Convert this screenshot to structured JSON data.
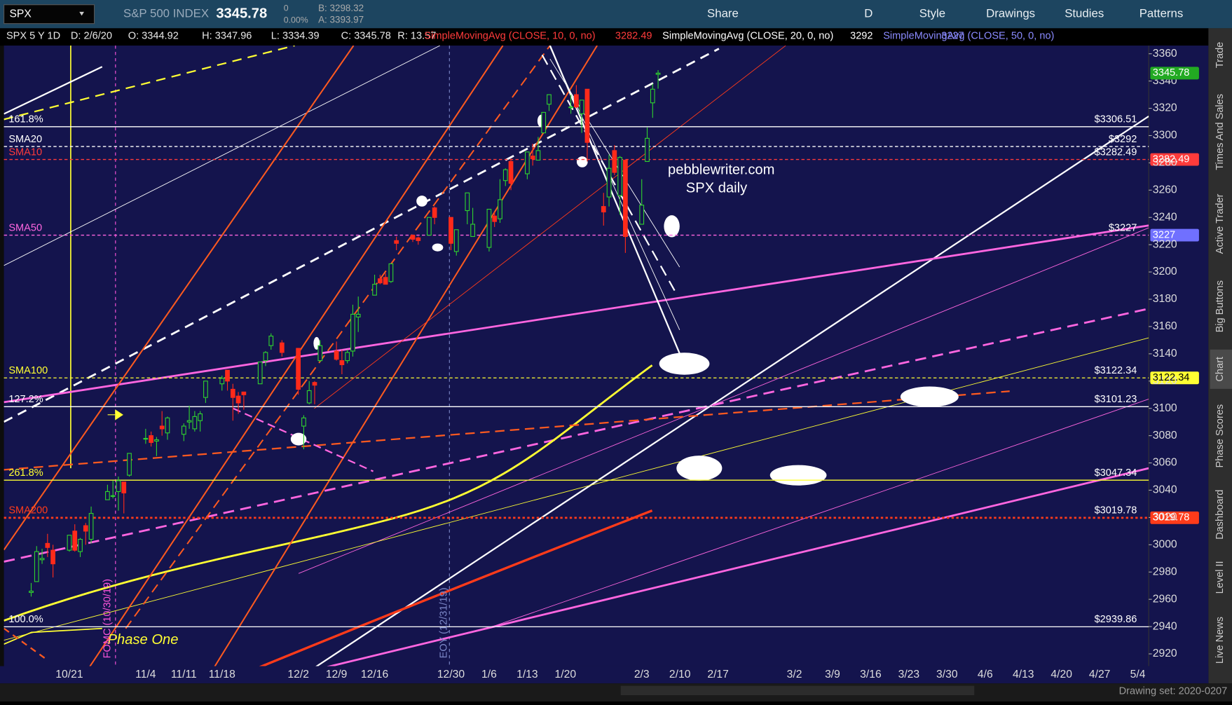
{
  "app": {
    "symbol": "SPX",
    "description": "S&P 500 INDEX",
    "last": "3345.78",
    "change": "0",
    "change_pct": "0.00%",
    "bid": "B: 3298.32",
    "ask": "A: 3393.97",
    "toolbar": [
      "Share",
      "D",
      "Style",
      "Drawings",
      "Studies",
      "Patterns"
    ],
    "info": [
      "SPX 5 Y 1D",
      "D: 2/6/20",
      "O: 3344.92",
      "H: 3347.96",
      "L: 3334.39",
      "C: 3345.78",
      "R: 13.57"
    ],
    "studies": [
      {
        "name": "SimpleMovingAvg (CLOSE, 10, 0, no)",
        "value": "3282.49",
        "color": "#ff3b3b"
      },
      {
        "name": "SimpleMovingAvg (CLOSE, 20, 0, no)",
        "value": "3292",
        "color": "#ffffff"
      },
      {
        "name": "SimpleMovingAvg (CLOSE, 50, 0, no)",
        "value": "3227",
        "color": "#8a8aff"
      }
    ],
    "side_tabs": [
      "Trade",
      "Times And Sales",
      "Active Trader",
      "Big Buttons",
      "Chart",
      "Phase Scores",
      "Dashboard",
      "Level II",
      "Live News"
    ],
    "drawing_set": "Drawing set: 2020-0207"
  },
  "chart_data": {
    "type": "candlestick",
    "up_color": "#2fd12f",
    "down_color": "#ff2a1a",
    "x": [
      "10/14",
      "10/15",
      "10/16",
      "10/17",
      "10/18",
      "10/21",
      "10/22",
      "10/23",
      "10/24",
      "10/25",
      "10/28",
      "10/29",
      "10/30",
      "10/31",
      "11/1",
      "11/4",
      "11/5",
      "11/6",
      "11/7",
      "11/8",
      "11/11",
      "11/12",
      "11/13",
      "11/14",
      "11/15",
      "11/18",
      "11/19",
      "11/20",
      "11/21",
      "11/22",
      "11/25",
      "11/26",
      "11/27",
      "11/29",
      "12/2",
      "12/3",
      "12/4",
      "12/5",
      "12/6",
      "12/9",
      "12/10",
      "12/11",
      "12/12",
      "12/13",
      "12/16",
      "12/17",
      "12/18",
      "12/19",
      "12/20",
      "12/23",
      "12/24",
      "12/26",
      "12/27",
      "12/30",
      "12/31",
      "1/2",
      "1/3",
      "1/6",
      "1/7",
      "1/8",
      "1/9",
      "1/10",
      "1/13",
      "1/14",
      "1/15",
      "1/16",
      "1/17",
      "1/21",
      "1/22",
      "1/23",
      "1/24",
      "1/27",
      "1/28",
      "1/29",
      "1/30",
      "1/31",
      "2/3",
      "2/4",
      "2/5",
      "2/6"
    ],
    "open": [
      2965,
      2973,
      2989,
      3001,
      2996,
      2996,
      3010,
      2995,
      3014,
      3004,
      3033,
      3036,
      3039,
      3046,
      3051,
      3078,
      3080,
      3076,
      3087,
      3082,
      3081,
      3090,
      3085,
      3091,
      3108,
      3118,
      3128,
      3114,
      3109,
      3112,
      3118,
      3135,
      3146,
      3148,
      3144,
      3087,
      3104,
      3119,
      3135,
      3142,
      3135,
      3135,
      3142,
      3167,
      3183,
      3195,
      3196,
      3193,
      3223,
      3227,
      3225,
      3227,
      3247,
      3240,
      3215,
      3245,
      3226,
      3218,
      3241,
      3239,
      3267,
      3281,
      3272,
      3285,
      3282,
      3302,
      3323,
      3321,
      3330,
      3316,
      3334,
      3248,
      3255,
      3289,
      3256,
      3282,
      3235,
      3281,
      3324,
      3344.92
    ],
    "high": [
      2972,
      2999,
      2997,
      3008,
      3000,
      3007,
      3015,
      3005,
      3016,
      3028,
      3044,
      3047,
      3050,
      3046,
      3067,
      3085,
      3083,
      3079,
      3098,
      3094,
      3089,
      3102,
      3098,
      3098,
      3120,
      3124,
      3128,
      3118,
      3112,
      3112,
      3134,
      3142,
      3155,
      3150,
      3144,
      3095,
      3120,
      3120,
      3150,
      3149,
      3143,
      3143,
      3176,
      3182,
      3198,
      3198,
      3199,
      3206,
      3226,
      3227,
      3226,
      3240,
      3248,
      3240,
      3231,
      3258,
      3247,
      3246,
      3244,
      3268,
      3276,
      3283,
      3288,
      3294,
      3299,
      3317,
      3330,
      3330,
      3337,
      3326,
      3334,
      3258,
      3286,
      3293,
      3285,
      3282,
      3268,
      3306,
      3338,
      3347.96
    ],
    "low": [
      2962,
      2973,
      2986,
      2991,
      2976,
      2995,
      2995,
      2991,
      3000,
      3001,
      3033,
      3034,
      3025,
      3023,
      3050,
      3074,
      3072,
      3065,
      3080,
      3077,
      3076,
      3085,
      3083,
      3083,
      3104,
      3113,
      3113,
      3091,
      3096,
      3099,
      3118,
      3131,
      3143,
      3138,
      3110,
      3070,
      3103,
      3103,
      3134,
      3135,
      3125,
      3133,
      3138,
      3156,
      3183,
      3191,
      3191,
      3192,
      3216,
      3222,
      3220,
      3227,
      3235,
      3216,
      3212,
      3235,
      3226,
      3215,
      3233,
      3236,
      3263,
      3260,
      3268,
      3278,
      3282,
      3302,
      3318,
      3316,
      3320,
      3302,
      3281,
      3234,
      3248,
      3271,
      3242,
      3214,
      3235,
      3281,
      3313,
      3334.39
    ],
    "close": [
      2966,
      2995,
      2990,
      2998,
      2986,
      3007,
      2996,
      3004,
      3010,
      3023,
      3039,
      3036,
      3047,
      3038,
      3067,
      3078,
      3075,
      3077,
      3085,
      3093,
      3087,
      3091,
      3094,
      3096,
      3120,
      3122,
      3120,
      3108,
      3104,
      3110,
      3134,
      3141,
      3153,
      3141,
      3114,
      3093,
      3113,
      3117,
      3146,
      3136,
      3132,
      3141,
      3169,
      3169,
      3191,
      3192,
      3191,
      3206,
      3221,
      3224,
      3223,
      3240,
      3240,
      3221,
      3231,
      3258,
      3235,
      3246,
      3237,
      3253,
      3275,
      3265,
      3288,
      3283,
      3289,
      3317,
      3330,
      3321,
      3321,
      3326,
      3295,
      3244,
      3276,
      3273,
      3284,
      3226,
      3249,
      3298,
      3334,
      3345.78
    ],
    "last": 3345.78,
    "xlim": [
      "10/9",
      "5/6"
    ],
    "xticks": [
      "10/21",
      "11/4",
      "11/11",
      "11/18",
      "12/2",
      "12/9",
      "12/16",
      "12/30",
      "1/6",
      "1/13",
      "1/20",
      "2/3",
      "2/10",
      "2/17",
      "3/2",
      "3/9",
      "3/16",
      "3/23",
      "3/30",
      "4/6",
      "4/13",
      "4/20",
      "4/27",
      "5/4"
    ],
    "ylim": [
      2911,
      3366
    ],
    "yticks": [
      2920,
      2940,
      2960,
      2980,
      3000,
      3020,
      3040,
      3060,
      3080,
      3100,
      3120,
      3140,
      3160,
      3180,
      3200,
      3220,
      3240,
      3260,
      3280,
      3300,
      3320,
      3340,
      3360
    ],
    "levels": [
      {
        "label": "161.8%",
        "value": 3306.51,
        "value_label": "$3306.51",
        "color": "#ffffff",
        "dash": "none",
        "badge": false
      },
      {
        "label": "SMA20",
        "value": 3292,
        "value_label": "$3292",
        "color": "#ffffff",
        "dash": "4 3",
        "badge": false
      },
      {
        "label": "SMA10",
        "value": 3282.49,
        "value_label": "$3282.49",
        "color": "#ff3b3b",
        "dash": "4 3",
        "badge": true
      },
      {
        "label": "SMA50",
        "value": 3227,
        "value_label": "$3227",
        "color": "#ff66e0",
        "dash": "4 3",
        "badge": true
      },
      {
        "label": "SMA100",
        "value": 3122.34,
        "value_label": "$3122.34",
        "color": "#ffff33",
        "dash": "4 3",
        "badge": true
      },
      {
        "label": "127.2%",
        "value": 3101.23,
        "value_label": "$3101.23",
        "color": "#ffffff",
        "dash": "none",
        "badge": false
      },
      {
        "label": "261.8%",
        "value": 3047.34,
        "value_label": "$3047.34",
        "color": "#ffff33",
        "dash": "none",
        "badge": false
      },
      {
        "label": "SMA200",
        "value": 3019.78,
        "value_label": "$3019.78",
        "color": "#ff3b1a",
        "dash": "3 3",
        "badge": true
      },
      {
        "label": "100.0%",
        "value": 2939.86,
        "value_label": "$2939.86",
        "color": "#ffffff",
        "dash": "none",
        "badge": false
      }
    ],
    "annotations": [
      {
        "text": "pebblewriter.com",
        "color": "#ffffff"
      },
      {
        "text": "SPX daily",
        "color": "#ffffff"
      },
      {
        "text": "Phase One",
        "color": "#ffff33"
      },
      {
        "text": "FOMC (10/30/19)",
        "color": "#ff55dd"
      },
      {
        "text": "EOY (12/31/19)",
        "color": "#7c88c8"
      }
    ]
  }
}
